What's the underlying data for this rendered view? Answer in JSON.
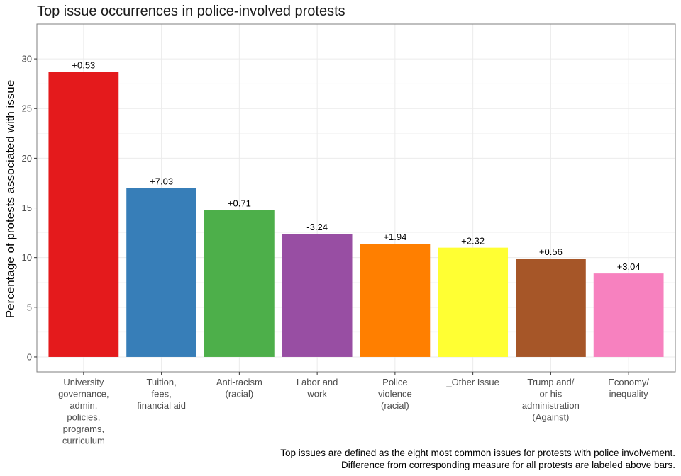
{
  "chart_data": {
    "type": "bar",
    "title": "Top issue occurrences in police-involved protests",
    "xlabel": "",
    "ylabel": "Percentage of protests associated with issue",
    "ylim": [
      -1.5,
      33.5
    ],
    "yticks": [
      0,
      5,
      10,
      15,
      20,
      25,
      30
    ],
    "grid": true,
    "legend": "none",
    "categories": [
      [
        "University",
        "governance,",
        "admin,",
        "policies,",
        "programs,",
        "curriculum"
      ],
      [
        "Tuition,",
        "fees,",
        "financial aid"
      ],
      [
        "Anti-racism",
        "(racial)"
      ],
      [
        "Labor and",
        "work"
      ],
      [
        "Police",
        "violence",
        "(racial)"
      ],
      [
        "_Other Issue"
      ],
      [
        "Trump and/",
        "or his",
        "administration",
        "(Against)"
      ],
      [
        "Economy/",
        "inequality"
      ]
    ],
    "values": [
      28.7,
      17.0,
      14.8,
      12.4,
      11.4,
      11.0,
      9.9,
      8.4
    ],
    "data_labels": [
      "+0.53",
      "+7.03",
      "+0.71",
      "-3.24",
      "+1.94",
      "+2.32",
      "+0.56",
      "+3.04"
    ],
    "colors": [
      "#e41a1c",
      "#377eb8",
      "#4daf4a",
      "#984ea3",
      "#ff7f00",
      "#ffff33",
      "#a65628",
      "#f781bf"
    ],
    "caption": [
      "Top issues are defined as the eight most common issues for protests with police involvement.",
      "Difference from corresponding measure for all protests are labeled above bars."
    ]
  }
}
